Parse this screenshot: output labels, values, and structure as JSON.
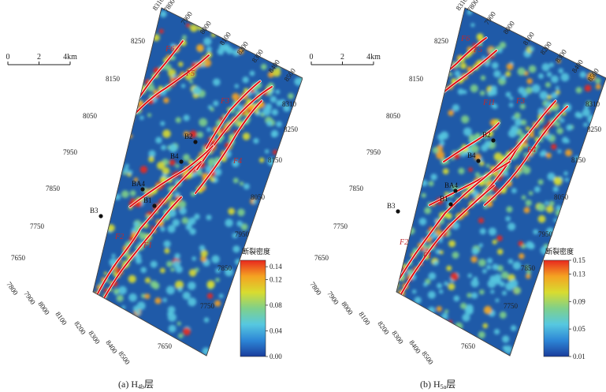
{
  "chart_data": [
    {
      "type": "heatmap",
      "caption": {
        "prefix": "(a) H",
        "sub": "4b",
        "suffix": "层"
      },
      "colorbar": {
        "title": "断裂密度",
        "min": 0.0,
        "max": 0.15,
        "ticks": [
          "0.14",
          "0.12",
          "0.08",
          "0.04",
          "0.00"
        ],
        "tick_values": [
          0.14,
          0.12,
          0.08,
          0.04,
          0.0
        ],
        "colors": [
          "#1a3d9c",
          "#2d86d6",
          "#56c8e0",
          "#7fd08a",
          "#d8dc30",
          "#f4a322",
          "#e8281e"
        ]
      },
      "scale_bar": {
        "labels": [
          "0",
          "2",
          "4km"
        ]
      },
      "top_labels": [
        "8310",
        "7800",
        "7900",
        "8000",
        "8100",
        "8200",
        "8300",
        "8400",
        "8500"
      ],
      "left_labels": [
        "8250",
        "8150",
        "8050",
        "7950",
        "7850",
        "7750",
        "7650"
      ],
      "right_labels": [
        "8310",
        "8250",
        "8150",
        "8050",
        "7950",
        "7850",
        "7750",
        "7650"
      ],
      "bottom_labels": [
        "7800",
        "7900",
        "8000",
        "8100",
        "8200",
        "8300",
        "8400",
        "8500"
      ],
      "faults": [
        "F6",
        "F5",
        "F3",
        "F4",
        "F2",
        "F1"
      ],
      "wells": [
        "B2",
        "B4",
        "BA4",
        "B1",
        "B3"
      ],
      "background_color": "#1f5aa8",
      "fault_color": "#e01010"
    },
    {
      "type": "heatmap",
      "caption": {
        "prefix": "(b) H",
        "sub": "5a",
        "suffix": "层"
      },
      "colorbar": {
        "title": "断裂密度",
        "min": 0.01,
        "max": 0.15,
        "ticks": [
          "0.15",
          "0.13",
          "0.09",
          "0.05",
          "0.01"
        ],
        "tick_values": [
          0.15,
          0.13,
          0.09,
          0.05,
          0.01
        ],
        "colors": [
          "#1a3d9c",
          "#2d86d6",
          "#56c8e0",
          "#7fd08a",
          "#d8dc30",
          "#f4a322",
          "#e8281e"
        ]
      },
      "scale_bar": {
        "labels": [
          "0",
          "2",
          "4km"
        ]
      },
      "top_labels": [
        "8310",
        "7800",
        "7900",
        "8000",
        "8100",
        "8200",
        "8300",
        "8400",
        "8500"
      ],
      "left_labels": [
        "8250",
        "8150",
        "8050",
        "7950",
        "7850",
        "7750",
        "7650"
      ],
      "right_labels": [
        "8310",
        "8250",
        "8150",
        "8050",
        "7950",
        "7850",
        "7750",
        "7650"
      ],
      "bottom_labels": [
        "7800",
        "7900",
        "8000",
        "8100",
        "8200",
        "8300",
        "8400",
        "8500"
      ],
      "faults": [
        "F6",
        "F5",
        "F11",
        "F3",
        "F4",
        "F2",
        "F1"
      ],
      "wells": [
        "B2",
        "B4",
        "BA4",
        "B1",
        "B3"
      ],
      "background_color": "#1f5aa8",
      "fault_color": "#e01010"
    }
  ]
}
